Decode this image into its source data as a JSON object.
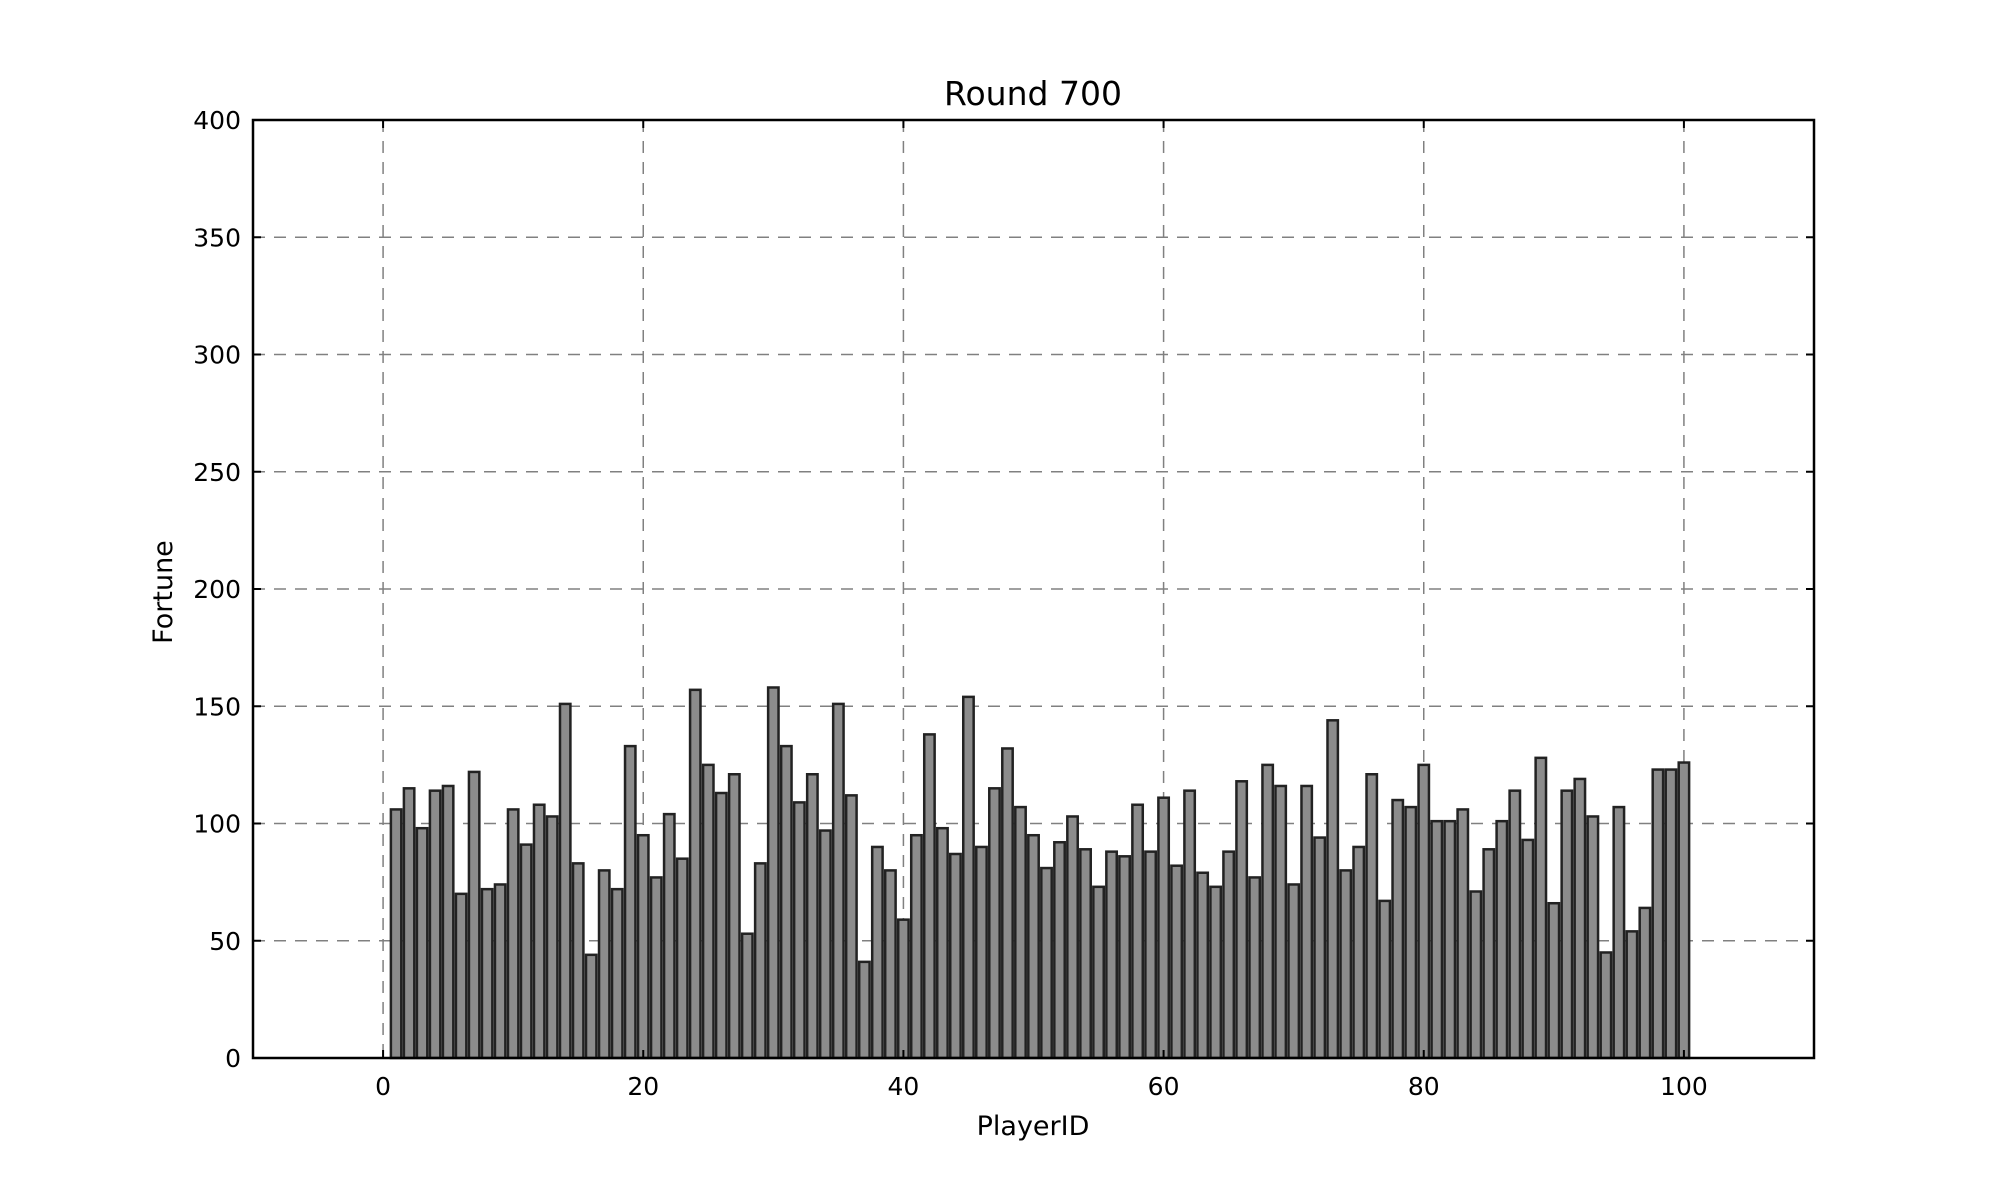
{
  "chart_data": {
    "type": "bar",
    "title": "Round 700",
    "xlabel": "PlayerID",
    "ylabel": "Fortune",
    "xlim": [
      -10,
      110
    ],
    "ylim": [
      0,
      400
    ],
    "x_ticks": [
      0,
      20,
      40,
      60,
      80,
      100
    ],
    "y_ticks": [
      0,
      50,
      100,
      150,
      200,
      250,
      300,
      350,
      400
    ],
    "grid": true,
    "bar_color": "#8c8c8c",
    "bar_edge_color": "#222222",
    "x": [
      1,
      2,
      3,
      4,
      5,
      6,
      7,
      8,
      9,
      10,
      11,
      12,
      13,
      14,
      15,
      16,
      17,
      18,
      19,
      20,
      21,
      22,
      23,
      24,
      25,
      26,
      27,
      28,
      29,
      30,
      31,
      32,
      33,
      34,
      35,
      36,
      37,
      38,
      39,
      40,
      41,
      42,
      43,
      44,
      45,
      46,
      47,
      48,
      49,
      50,
      51,
      52,
      53,
      54,
      55,
      56,
      57,
      58,
      59,
      60,
      61,
      62,
      63,
      64,
      65,
      66,
      67,
      68,
      69,
      70,
      71,
      72,
      73,
      74,
      75,
      76,
      77,
      78,
      79,
      80,
      81,
      82,
      83,
      84,
      85,
      86,
      87,
      88,
      89,
      90,
      91,
      92,
      93,
      94,
      95,
      96,
      97,
      98,
      99,
      100
    ],
    "values": [
      106,
      115,
      98,
      114,
      116,
      70,
      122,
      72,
      74,
      106,
      91,
      108,
      103,
      151,
      83,
      44,
      80,
      72,
      133,
      95,
      77,
      104,
      85,
      157,
      125,
      113,
      121,
      53,
      83,
      158,
      133,
      109,
      121,
      97,
      151,
      112,
      41,
      90,
      80,
      59,
      95,
      138,
      98,
      87,
      154,
      90,
      115,
      132,
      107,
      95,
      81,
      92,
      103,
      89,
      73,
      88,
      86,
      108,
      88,
      111,
      82,
      114,
      79,
      73,
      88,
      118,
      77,
      125,
      116,
      74,
      116,
      94,
      144,
      80,
      90,
      121,
      67,
      110,
      107,
      125,
      101,
      101,
      106,
      71,
      89,
      101,
      114,
      93,
      128,
      66,
      114,
      119,
      103,
      45,
      107,
      54,
      64,
      123,
      123,
      126
    ]
  }
}
